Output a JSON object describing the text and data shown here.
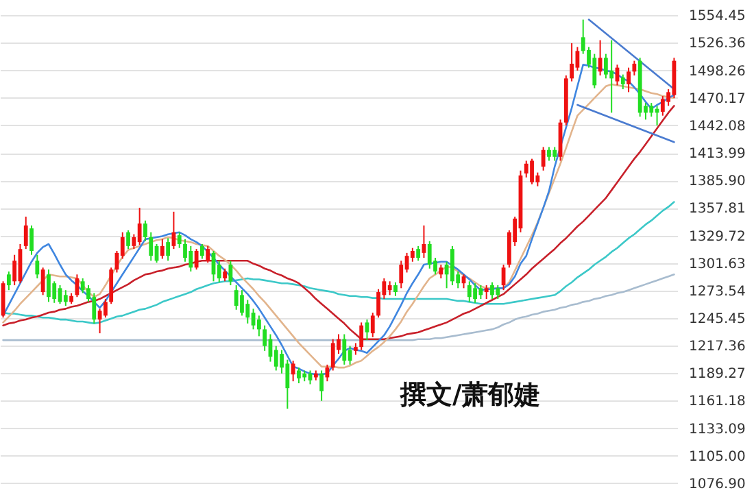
{
  "chart_data": {
    "type": "candlestick",
    "categories": [
      null,
      null,
      null,
      null,
      null,
      null,
      null,
      null,
      null,
      null,
      null,
      null,
      null,
      null,
      null,
      null,
      null,
      null,
      null,
      null,
      null,
      null,
      null,
      null,
      null,
      null,
      null,
      null,
      null,
      null,
      null,
      null,
      null,
      null,
      null,
      null,
      null,
      null,
      null,
      null,
      null,
      null,
      null,
      null,
      null,
      null,
      null,
      null,
      null,
      null,
      null,
      null,
      null,
      null,
      null,
      null,
      null,
      null,
      null,
      null,
      null,
      null,
      null,
      null,
      null,
      null,
      null,
      null,
      null,
      null,
      null,
      null,
      null,
      null,
      null,
      null,
      null,
      null,
      null,
      null,
      null,
      null,
      null,
      null,
      null,
      null,
      null,
      null,
      null,
      null,
      null,
      null,
      null,
      null,
      null,
      null,
      null,
      null,
      null,
      null,
      null,
      null,
      null,
      null,
      null,
      null,
      null,
      null,
      null,
      null,
      null,
      null,
      null,
      null,
      null,
      null,
      null,
      null,
      null
    ],
    "ohlc": [
      [
        1248,
        1283,
        1246,
        1281
      ],
      [
        1290,
        1293,
        1274,
        1279
      ],
      [
        1283,
        1310,
        1279,
        1304
      ],
      [
        1283,
        1321,
        1281,
        1316
      ],
      [
        1319,
        1349,
        1316,
        1340
      ],
      [
        1337,
        1340,
        1310,
        1314
      ],
      [
        1304,
        1310,
        1286,
        1290
      ],
      [
        1272,
        1297,
        1269,
        1295
      ],
      [
        1290,
        1295,
        1262,
        1267
      ],
      [
        1281,
        1283,
        1261,
        1265
      ],
      [
        1276,
        1279,
        1260,
        1262
      ],
      [
        1269,
        1274,
        1258,
        1262
      ],
      [
        1262,
        1271,
        1260,
        1268
      ],
      [
        1269,
        1290,
        1267,
        1286
      ],
      [
        1283,
        1286,
        1271,
        1274
      ],
      [
        1276,
        1279,
        1262,
        1265
      ],
      [
        1267,
        1271,
        1240,
        1244
      ],
      [
        1244,
        1255,
        1230,
        1253
      ],
      [
        1248,
        1265,
        1246,
        1262
      ],
      [
        1262,
        1297,
        1260,
        1295
      ],
      [
        1295,
        1314,
        1292,
        1312
      ],
      [
        1309,
        1333,
        1306,
        1328
      ],
      [
        1333,
        1335,
        1316,
        1319
      ],
      [
        1319,
        1331,
        1316,
        1328
      ],
      [
        1323,
        1358,
        1320,
        1342
      ],
      [
        1342,
        1345,
        1324,
        1328
      ],
      [
        1328,
        1333,
        1304,
        1309
      ],
      [
        1319,
        1321,
        1302,
        1304
      ],
      [
        1309,
        1326,
        1306,
        1319
      ],
      [
        1323,
        1327,
        1304,
        1309
      ],
      [
        1319,
        1354,
        1316,
        1333
      ],
      [
        1330,
        1333,
        1317,
        1321
      ],
      [
        1321,
        1326,
        1303,
        1307
      ],
      [
        1314,
        1319,
        1293,
        1297
      ],
      [
        1297,
        1316,
        1295,
        1314
      ],
      [
        1319,
        1321,
        1306,
        1309
      ],
      [
        1304,
        1319,
        1302,
        1316
      ],
      [
        1312,
        1314,
        1283,
        1290
      ],
      [
        1300,
        1304,
        1282,
        1286
      ],
      [
        1286,
        1296,
        1283,
        1293
      ],
      [
        1300,
        1304,
        1279,
        1283
      ],
      [
        1274,
        1279,
        1254,
        1258
      ],
      [
        1269,
        1274,
        1248,
        1251
      ],
      [
        1260,
        1264,
        1240,
        1246
      ],
      [
        1251,
        1255,
        1234,
        1238
      ],
      [
        1244,
        1248,
        1227,
        1234
      ],
      [
        1234,
        1238,
        1212,
        1217
      ],
      [
        1224,
        1229,
        1201,
        1206
      ],
      [
        1213,
        1217,
        1192,
        1196
      ],
      [
        1209,
        1213,
        1189,
        1195
      ],
      [
        1199,
        1203,
        1153,
        1174
      ],
      [
        1188,
        1202,
        1181,
        1199
      ],
      [
        1192,
        1195,
        1179,
        1184
      ],
      [
        1189,
        1192,
        1181,
        1185
      ],
      [
        1189,
        1192,
        1178,
        1182
      ],
      [
        1185,
        1192,
        1182,
        1189
      ],
      [
        1189,
        1192,
        1161,
        1171
      ],
      [
        1185,
        1198,
        1181,
        1195
      ],
      [
        1195,
        1224,
        1192,
        1220
      ],
      [
        1213,
        1229,
        1209,
        1224
      ],
      [
        1224,
        1229,
        1198,
        1202
      ],
      [
        1213,
        1217,
        1198,
        1202
      ],
      [
        1212,
        1220,
        1208,
        1216
      ],
      [
        1216,
        1241,
        1213,
        1238
      ],
      [
        1241,
        1244,
        1223,
        1231
      ],
      [
        1230,
        1251,
        1226,
        1248
      ],
      [
        1248,
        1275,
        1246,
        1272
      ],
      [
        1269,
        1286,
        1265,
        1283
      ],
      [
        1274,
        1283,
        1269,
        1279
      ],
      [
        1279,
        1282,
        1268,
        1272
      ],
      [
        1281,
        1304,
        1276,
        1300
      ],
      [
        1295,
        1312,
        1292,
        1309
      ],
      [
        1307,
        1317,
        1303,
        1314
      ],
      [
        1316,
        1319,
        1304,
        1307
      ],
      [
        1312,
        1340,
        1307,
        1321
      ],
      [
        1321,
        1324,
        1296,
        1300
      ],
      [
        1304,
        1307,
        1290,
        1293
      ],
      [
        1290,
        1300,
        1286,
        1297
      ],
      [
        1300,
        1303,
        1276,
        1290
      ],
      [
        1316,
        1319,
        1279,
        1283
      ],
      [
        1290,
        1293,
        1276,
        1281
      ],
      [
        1281,
        1290,
        1276,
        1288
      ],
      [
        1279,
        1283,
        1262,
        1267
      ],
      [
        1276,
        1281,
        1261,
        1265
      ],
      [
        1276,
        1279,
        1265,
        1269
      ],
      [
        1272,
        1279,
        1265,
        1276
      ],
      [
        1279,
        1282,
        1265,
        1269
      ],
      [
        1276,
        1279,
        1265,
        1269
      ],
      [
        1279,
        1300,
        1274,
        1297
      ],
      [
        1300,
        1335,
        1297,
        1333
      ],
      [
        1323,
        1349,
        1319,
        1347
      ],
      [
        1337,
        1396,
        1333,
        1391
      ],
      [
        1393,
        1406,
        1389,
        1403
      ],
      [
        1384,
        1408,
        1382,
        1406
      ],
      [
        1384,
        1394,
        1380,
        1391
      ],
      [
        1400,
        1420,
        1396,
        1417
      ],
      [
        1417,
        1420,
        1406,
        1410
      ],
      [
        1417,
        1420,
        1406,
        1410
      ],
      [
        1410,
        1448,
        1406,
        1445
      ],
      [
        1445,
        1493,
        1442,
        1490
      ],
      [
        1490,
        1526,
        1487,
        1505
      ],
      [
        1501,
        1522,
        1498,
        1518
      ],
      [
        1532,
        1550,
        1515,
        1518
      ],
      [
        1519,
        1522,
        1501,
        1504
      ],
      [
        1511,
        1515,
        1480,
        1483
      ],
      [
        1497,
        1529,
        1493,
        1511
      ],
      [
        1511,
        1515,
        1490,
        1494
      ],
      [
        1498,
        1529,
        1455,
        1490
      ],
      [
        1487,
        1504,
        1483,
        1501
      ],
      [
        1491,
        1494,
        1479,
        1484
      ],
      [
        1484,
        1501,
        1476,
        1497
      ],
      [
        1497,
        1508,
        1493,
        1505
      ],
      [
        1508,
        1511,
        1451,
        1455
      ],
      [
        1462,
        1465,
        1448,
        1455
      ],
      [
        1462,
        1465,
        1451,
        1455
      ],
      [
        1459,
        1462,
        1442,
        1455
      ],
      [
        1456,
        1472,
        1452,
        1469
      ],
      [
        1466,
        1479,
        1462,
        1476
      ],
      [
        1473,
        1511,
        1470,
        1508
      ]
    ],
    "colors": [
      "#ee1111",
      "#22dd22",
      "#ee1111",
      "#ee1111",
      "#ee1111",
      "#22dd22",
      "#22dd22",
      "#ee1111",
      "#22dd22",
      "#22dd22",
      "#22dd22",
      "#22dd22",
      "#ee1111",
      "#ee1111",
      "#22dd22",
      "#22dd22",
      "#22dd22",
      "#ee1111",
      "#ee1111",
      "#ee1111",
      "#ee1111",
      "#ee1111",
      "#22dd22",
      "#ee1111",
      "#ee1111",
      "#22dd22",
      "#22dd22",
      "#22dd22",
      "#ee1111",
      "#22dd22",
      "#ee1111",
      "#22dd22",
      "#22dd22",
      "#22dd22",
      "#ee1111",
      "#22dd22",
      "#ee1111",
      "#22dd22",
      "#22dd22",
      "#ee1111",
      "#22dd22",
      "#22dd22",
      "#22dd22",
      "#22dd22",
      "#22dd22",
      "#22dd22",
      "#22dd22",
      "#22dd22",
      "#22dd22",
      "#22dd22",
      "#22dd22",
      "#ee1111",
      "#22dd22",
      "#22dd22",
      "#22dd22",
      "#ee1111",
      "#22dd22",
      "#ee1111",
      "#ee1111",
      "#ee1111",
      "#22dd22",
      "#22dd22",
      "#ee1111",
      "#ee1111",
      "#22dd22",
      "#ee1111",
      "#ee1111",
      "#ee1111",
      "#ee1111",
      "#22dd22",
      "#ee1111",
      "#ee1111",
      "#ee1111",
      "#22dd22",
      "#ee1111",
      "#22dd22",
      "#22dd22",
      "#ee1111",
      "#22dd22",
      "#22dd22",
      "#22dd22",
      "#ee1111",
      "#22dd22",
      "#22dd22",
      "#22dd22",
      "#ee1111",
      "#22dd22",
      "#22dd22",
      "#ee1111",
      "#ee1111",
      "#ee1111",
      "#ee1111",
      "#ee1111",
      "#ee1111",
      "#ee1111",
      "#ee1111",
      "#22dd22",
      "#22dd22",
      "#ee1111",
      "#ee1111",
      "#ee1111",
      "#ee1111",
      "#22dd22",
      "#22dd22",
      "#22dd22",
      "#ee1111",
      "#22dd22",
      "#22dd22",
      "#ee1111",
      "#22dd22",
      "#ee1111",
      "#ee1111",
      "#22dd22",
      "#22dd22",
      "#22dd22",
      "#22dd22",
      "#ee1111",
      "#ee1111",
      "#ee1111"
    ],
    "series": [
      {
        "type": "line",
        "color": "#a8bccf",
        "values": [
          1223,
          1223,
          1223,
          1223,
          1223,
          1223,
          1223,
          1223,
          1223,
          1223,
          1223,
          1223,
          1223,
          1223,
          1223,
          1223,
          1223,
          1223,
          1223,
          1223,
          1223,
          1223,
          1223,
          1223,
          1223,
          1223,
          1223,
          1223,
          1223,
          1223,
          1223,
          1223,
          1223,
          1223,
          1223,
          1223,
          1223,
          1223,
          1223,
          1223,
          1223,
          1223,
          1223,
          1223,
          1223,
          1223,
          1223,
          1223,
          1223,
          1223,
          1223,
          1223,
          1223,
          1223,
          1223,
          1223,
          1223,
          1223,
          1223,
          1223,
          1223,
          1223,
          1223,
          1223,
          1223,
          1223,
          1223,
          1223,
          1223,
          1223,
          1223,
          1223,
          1223,
          1224,
          1224,
          1224,
          1225,
          1225,
          1226,
          1227,
          1228,
          1229,
          1230,
          1231,
          1232,
          1233,
          1234,
          1236,
          1239,
          1241,
          1244,
          1246,
          1247,
          1249,
          1250,
          1252,
          1253,
          1254,
          1256,
          1257,
          1259,
          1260,
          1262,
          1263,
          1265,
          1266,
          1268,
          1269,
          1271,
          1272,
          1274,
          1276,
          1278,
          1280,
          1282,
          1284,
          1286,
          1288,
          1290
        ]
      },
      {
        "type": "line",
        "color": "#3cc8c8",
        "values": [
          1251,
          1250,
          1250,
          1249,
          1248,
          1248,
          1247,
          1246,
          1246,
          1245,
          1244,
          1244,
          1243,
          1242,
          1242,
          1241,
          1240,
          1241,
          1243,
          1245,
          1247,
          1248,
          1250,
          1252,
          1254,
          1255,
          1257,
          1259,
          1262,
          1264,
          1266,
          1268,
          1270,
          1272,
          1275,
          1277,
          1279,
          1281,
          1282,
          1283,
          1283,
          1284,
          1285,
          1286,
          1285,
          1285,
          1284,
          1283,
          1282,
          1281,
          1281,
          1280,
          1279,
          1278,
          1276,
          1275,
          1274,
          1273,
          1272,
          1270,
          1269,
          1268,
          1268,
          1267,
          1267,
          1266,
          1266,
          1265,
          1265,
          1265,
          1265,
          1265,
          1265,
          1265,
          1265,
          1265,
          1265,
          1265,
          1265,
          1264,
          1263,
          1263,
          1262,
          1261,
          1260,
          1260,
          1260,
          1260,
          1260,
          1261,
          1262,
          1263,
          1264,
          1265,
          1266,
          1267,
          1268,
          1269,
          1273,
          1278,
          1282,
          1287,
          1291,
          1295,
          1300,
          1304,
          1308,
          1313,
          1317,
          1322,
          1327,
          1331,
          1336,
          1341,
          1345,
          1350,
          1355,
          1359,
          1364
        ]
      },
      {
        "type": "line",
        "color": "#c8202a",
        "values": [
          1238,
          1240,
          1241,
          1243,
          1244,
          1246,
          1247,
          1249,
          1251,
          1252,
          1254,
          1255,
          1257,
          1258,
          1260,
          1262,
          1263,
          1265,
          1268,
          1271,
          1274,
          1277,
          1280,
          1284,
          1287,
          1290,
          1291,
          1293,
          1294,
          1296,
          1297,
          1298,
          1300,
          1301,
          1303,
          1304,
          1304,
          1304,
          1304,
          1304,
          1304,
          1304,
          1304,
          1304,
          1301,
          1299,
          1296,
          1294,
          1291,
          1289,
          1286,
          1284,
          1281,
          1276,
          1271,
          1265,
          1260,
          1255,
          1250,
          1245,
          1240,
          1234,
          1229,
          1224,
          1224,
          1224,
          1224,
          1224,
          1225,
          1226,
          1227,
          1229,
          1230,
          1231,
          1233,
          1235,
          1237,
          1239,
          1241,
          1244,
          1247,
          1250,
          1252,
          1255,
          1258,
          1261,
          1264,
          1267,
          1270,
          1275,
          1280,
          1285,
          1290,
          1296,
          1301,
          1306,
          1311,
          1316,
          1322,
          1327,
          1333,
          1339,
          1344,
          1350,
          1356,
          1362,
          1368,
          1376,
          1384,
          1392,
          1400,
          1408,
          1415,
          1423,
          1431,
          1439,
          1447,
          1455,
          1462
        ]
      },
      {
        "type": "line",
        "color": "#e2b48c",
        "values": [
          1241,
          1247,
          1253,
          1260,
          1266,
          1272,
          1278,
          1284,
          1290,
          1289,
          1288,
          1288,
          1287,
          1286,
          1279,
          1272,
          1267,
          1270,
          1279,
          1289,
          1299,
          1308,
          1315,
          1317,
          1319,
          1321,
          1323,
          1325,
          1326,
          1328,
          1327,
          1325,
          1324,
          1323,
          1321,
          1320,
          1319,
          1314,
          1309,
          1305,
          1300,
          1294,
          1287,
          1281,
          1275,
          1268,
          1262,
          1255,
          1248,
          1241,
          1234,
          1227,
          1220,
          1214,
          1208,
          1202,
          1196,
          1196,
          1196,
          1195,
          1195,
          1197,
          1200,
          1202,
          1207,
          1212,
          1216,
          1221,
          1227,
          1234,
          1242,
          1252,
          1260,
          1269,
          1278,
          1286,
          1290,
          1294,
          1298,
          1297,
          1293,
          1289,
          1286,
          1282,
          1278,
          1276,
          1276,
          1276,
          1276,
          1282,
          1294,
          1306,
          1318,
          1330,
          1343,
          1358,
          1373,
          1388,
          1403,
          1419,
          1436,
          1452,
          1458,
          1464,
          1470,
          1476,
          1482,
          1484,
          1483,
          1482,
          1481,
          1480,
          1479,
          1477,
          1475,
          1474,
          1472,
          1471,
          1470
        ]
      },
      {
        "type": "line",
        "color": "#3f86e0",
        "values": [
          1248,
          1259,
          1270,
          1281,
          1292,
          1303,
          1312,
          1318,
          1321,
          1311,
          1300,
          1290,
          1284,
          1279,
          1273,
          1268,
          1262,
          1256,
          1263,
          1272,
          1281,
          1290,
          1299,
          1308,
          1317,
          1326,
          1327,
          1328,
          1329,
          1331,
          1332,
          1333,
          1330,
          1326,
          1323,
          1319,
          1313,
          1307,
          1300,
          1294,
          1288,
          1282,
          1276,
          1270,
          1263,
          1255,
          1246,
          1237,
          1228,
          1218,
          1207,
          1196,
          1194,
          1191,
          1189,
          1188,
          1188,
          1189,
          1197,
          1204,
          1212,
          1215,
          1213,
          1212,
          1210,
          1216,
          1222,
          1228,
          1237,
          1248,
          1259,
          1271,
          1281,
          1290,
          1300,
          1301,
          1302,
          1303,
          1303,
          1299,
          1295,
          1290,
          1285,
          1279,
          1274,
          1275,
          1275,
          1276,
          1276,
          1280,
          1288,
          1301,
          1309,
          1326,
          1342,
          1358,
          1375,
          1400,
          1420,
          1440,
          1460,
          1482,
          1504,
          1503,
          1501,
          1500,
          1498,
          1497,
          1494,
          1490,
          1487,
          1481,
          1474,
          1466,
          1459,
          1463,
          1466,
          1470,
          1473
        ]
      },
      {
        "type": "line",
        "color": "#4a7bd0",
        "values": [
          null,
          null,
          null,
          null,
          null,
          null,
          null,
          null,
          null,
          null,
          null,
          null,
          null,
          null,
          null,
          null,
          null,
          null,
          null,
          null,
          null,
          null,
          null,
          null,
          null,
          null,
          null,
          null,
          null,
          null,
          null,
          null,
          null,
          null,
          null,
          null,
          null,
          null,
          null,
          null,
          null,
          null,
          null,
          null,
          null,
          null,
          null,
          null,
          null,
          null,
          null,
          null,
          null,
          null,
          null,
          null,
          null,
          null,
          null,
          null,
          null,
          null,
          null,
          null,
          null,
          null,
          null,
          null,
          null,
          null,
          null,
          null,
          null,
          null,
          null,
          null,
          null,
          null,
          null,
          null,
          null,
          null,
          null,
          null,
          null,
          null,
          null,
          null,
          null,
          null,
          null,
          null,
          null,
          null,
          null,
          null,
          null,
          null,
          null,
          null,
          null,
          null,
          null,
          1550,
          null,
          null,
          null,
          null,
          null,
          null,
          null,
          null,
          null,
          null,
          null,
          null,
          null,
          null,
          1479
        ]
      },
      {
        "type": "line",
        "color": "#4a7bd0",
        "values": [
          null,
          null,
          null,
          null,
          null,
          null,
          null,
          null,
          null,
          null,
          null,
          null,
          null,
          null,
          null,
          null,
          null,
          null,
          null,
          null,
          null,
          null,
          null,
          null,
          null,
          null,
          null,
          null,
          null,
          null,
          null,
          null,
          null,
          null,
          null,
          null,
          null,
          null,
          null,
          null,
          null,
          null,
          null,
          null,
          null,
          null,
          null,
          null,
          null,
          null,
          null,
          null,
          null,
          null,
          null,
          null,
          null,
          null,
          null,
          null,
          null,
          null,
          null,
          null,
          null,
          null,
          null,
          null,
          null,
          null,
          null,
          null,
          null,
          null,
          null,
          null,
          null,
          null,
          null,
          null,
          null,
          null,
          null,
          null,
          null,
          null,
          null,
          null,
          null,
          null,
          null,
          null,
          null,
          null,
          null,
          null,
          null,
          null,
          null,
          null,
          null,
          1463,
          null,
          null,
          null,
          null,
          null,
          null,
          null,
          null,
          null,
          null,
          null,
          null,
          null,
          null,
          null,
          null,
          1425
        ]
      }
    ],
    "ylim": [
      1065,
      1570
    ],
    "yticks": [
      {
        "value": 1076.9,
        "label": "1076.90"
      },
      {
        "value": 1105,
        "label": "1105.00"
      },
      1133.09,
      1161.18,
      1189.27,
      1217.36,
      1245.45,
      1273.54,
      1301.63,
      1329.72,
      1357.81,
      {
        "value": 1385.9,
        "label": "1385.90"
      },
      1413.99,
      1442.08,
      1470.17,
      1498.26,
      1526.36,
      1554.45
    ],
    "tick_labels": "y",
    "grid": "y",
    "annotations": [
      "撰文/萧郁婕"
    ]
  }
}
